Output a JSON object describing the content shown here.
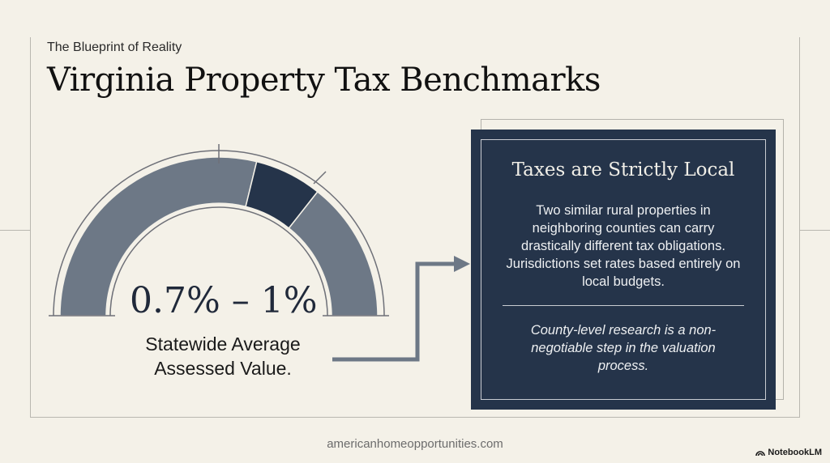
{
  "header": {
    "eyebrow": "The Blueprint of Reality",
    "title": "Virginia Property Tax Benchmarks"
  },
  "gauge": {
    "value_text": "0.7% – 1%",
    "label": "Statewide Average Assessed Value.",
    "range_min_pct": 0.7,
    "range_max_pct": 1.0,
    "colors": {
      "track": "#6d7886",
      "highlight": "#25344a",
      "outline": "#6e7078"
    }
  },
  "card": {
    "title": "Taxes are Strictly Local",
    "body": "Two similar rural properties in neighboring counties can carry drastically different tax obligations. Jurisdictions set rates based entirely on local budgets.",
    "note": "County-level research is a non-negotiable step in the valuation process.",
    "colors": {
      "background": "#25344a",
      "text": "#eef0f2"
    }
  },
  "footer": {
    "url": "americanhomeopportunities.com",
    "brand": "NotebookLM"
  }
}
